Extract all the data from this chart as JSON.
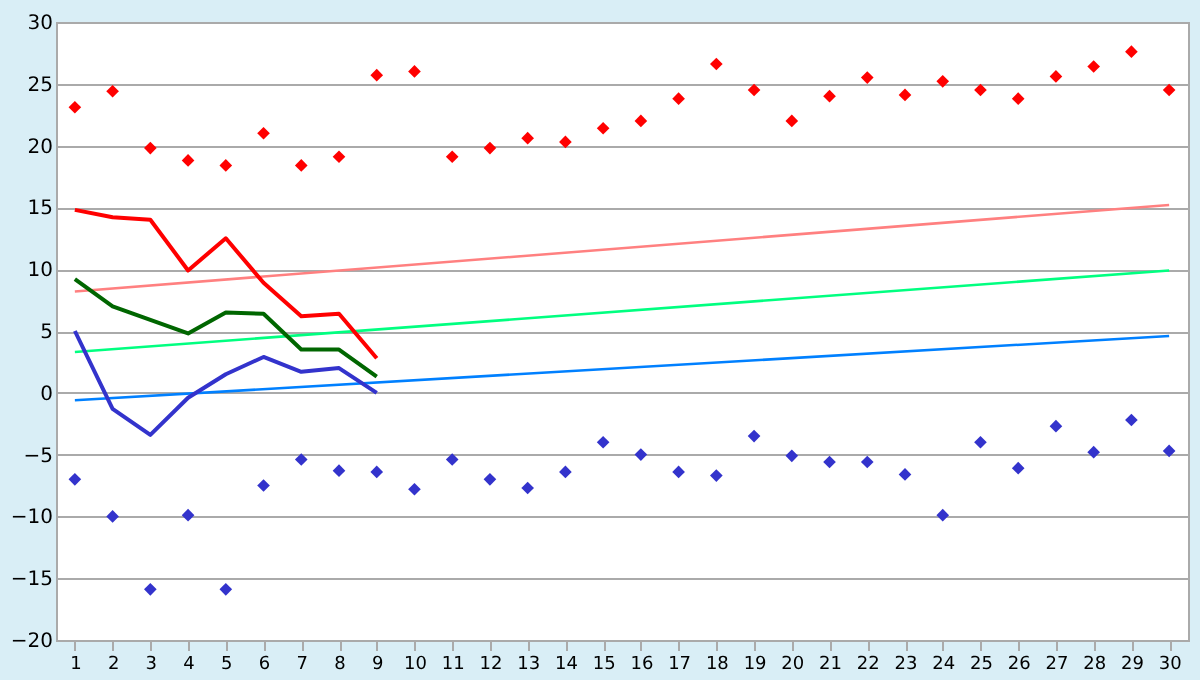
{
  "chart_data": {
    "type": "line",
    "x": [
      1,
      2,
      3,
      4,
      5,
      6,
      7,
      8,
      9,
      10,
      11,
      12,
      13,
      14,
      15,
      16,
      17,
      18,
      19,
      20,
      21,
      22,
      23,
      24,
      25,
      26,
      27,
      28,
      29,
      30
    ],
    "xlim": [
      0.5,
      30.5
    ],
    "xticks": [
      1,
      2,
      3,
      4,
      5,
      6,
      7,
      8,
      9,
      10,
      11,
      12,
      13,
      14,
      15,
      16,
      17,
      18,
      19,
      20,
      21,
      22,
      23,
      24,
      25,
      26,
      27,
      28,
      29,
      30
    ],
    "ylim": [
      -20,
      30
    ],
    "yticks": [
      -20,
      -15,
      -10,
      -5,
      0,
      5,
      10,
      15,
      20,
      25,
      30
    ],
    "grid": "y",
    "series": [
      {
        "type": "scatter",
        "marker": "diamond",
        "color": "#ff0000",
        "values": [
          23.1,
          24.4,
          19.8,
          18.8,
          18.4,
          21.0,
          18.4,
          19.1,
          25.7,
          26.0,
          19.1,
          19.8,
          20.6,
          20.3,
          21.4,
          22.0,
          23.8,
          26.6,
          24.5,
          22.0,
          24.0,
          25.5,
          24.1,
          25.2,
          24.5,
          23.8,
          25.6,
          26.4,
          27.6,
          24.5
        ]
      },
      {
        "type": "scatter",
        "marker": "diamond",
        "color": "#3333cc",
        "values": [
          -7.0,
          -10.0,
          -15.9,
          -9.9,
          -15.9,
          -7.5,
          -5.4,
          -6.3,
          -6.4,
          -7.8,
          -5.4,
          -7.0,
          -7.7,
          -6.4,
          -4.0,
          -5.0,
          -6.4,
          -6.7,
          -3.5,
          -5.1,
          -5.6,
          -5.6,
          -6.6,
          -9.9,
          -4.0,
          -6.1,
          -2.7,
          -4.8,
          -2.2,
          -4.7
        ]
      },
      {
        "color": "#ff8080",
        "x": [
          1,
          30
        ],
        "values": [
          8.2,
          15.2
        ]
      },
      {
        "color": "#00ff80",
        "x": [
          1,
          30
        ],
        "values": [
          3.3,
          9.9
        ]
      },
      {
        "color": "#0080ff",
        "x": [
          1,
          30
        ],
        "values": [
          -0.6,
          4.6
        ]
      },
      {
        "color": "#ff0000",
        "x": [
          1,
          2,
          3,
          4,
          5,
          6,
          7,
          8,
          9
        ],
        "values": [
          14.8,
          14.2,
          14.0,
          9.9,
          12.5,
          8.9,
          6.2,
          6.4,
          2.8
        ]
      },
      {
        "color": "#006600",
        "x": [
          1,
          2,
          3,
          4,
          5,
          6,
          7,
          8,
          9
        ],
        "values": [
          9.2,
          7.0,
          5.9,
          4.8,
          6.5,
          6.4,
          3.5,
          3.5,
          1.3
        ]
      },
      {
        "color": "#3333cc",
        "x": [
          1,
          2,
          3,
          4,
          5,
          6,
          7,
          8,
          9
        ],
        "values": [
          5.0,
          -1.3,
          -3.4,
          -0.4,
          1.5,
          2.9,
          1.7,
          2.0,
          0.0
        ]
      }
    ]
  }
}
